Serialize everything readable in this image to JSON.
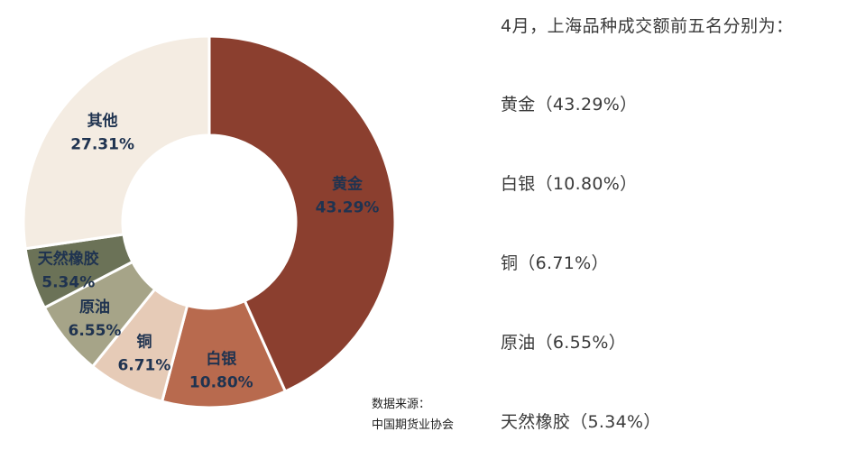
{
  "chart_data": {
    "type": "pie",
    "categories": [
      "黄金",
      "白银",
      "铜",
      "原油",
      "天然橡胶",
      "其他"
    ],
    "values": [
      43.29,
      10.8,
      6.71,
      6.55,
      5.34,
      27.31
    ],
    "value_labels": [
      "43.29%",
      "10.80%",
      "6.71%",
      "6.55%",
      "5.34%",
      "27.31%"
    ],
    "colors": [
      "#8b3f2f",
      "#b86a4e",
      "#e6cbb7",
      "#a6a488",
      "#6b7257",
      "#f4ece2"
    ],
    "donut": true
  },
  "side": {
    "title": "4月，上海品种成交额前五名分别为：",
    "items": [
      "黄金（43.29%）",
      "白银（10.80%）",
      "铜（6.71%）",
      "原油（6.55%）",
      "天然橡胶（5.34%）"
    ]
  },
  "source": {
    "line1": "数据来源：",
    "line2": "中国期货业协会"
  }
}
